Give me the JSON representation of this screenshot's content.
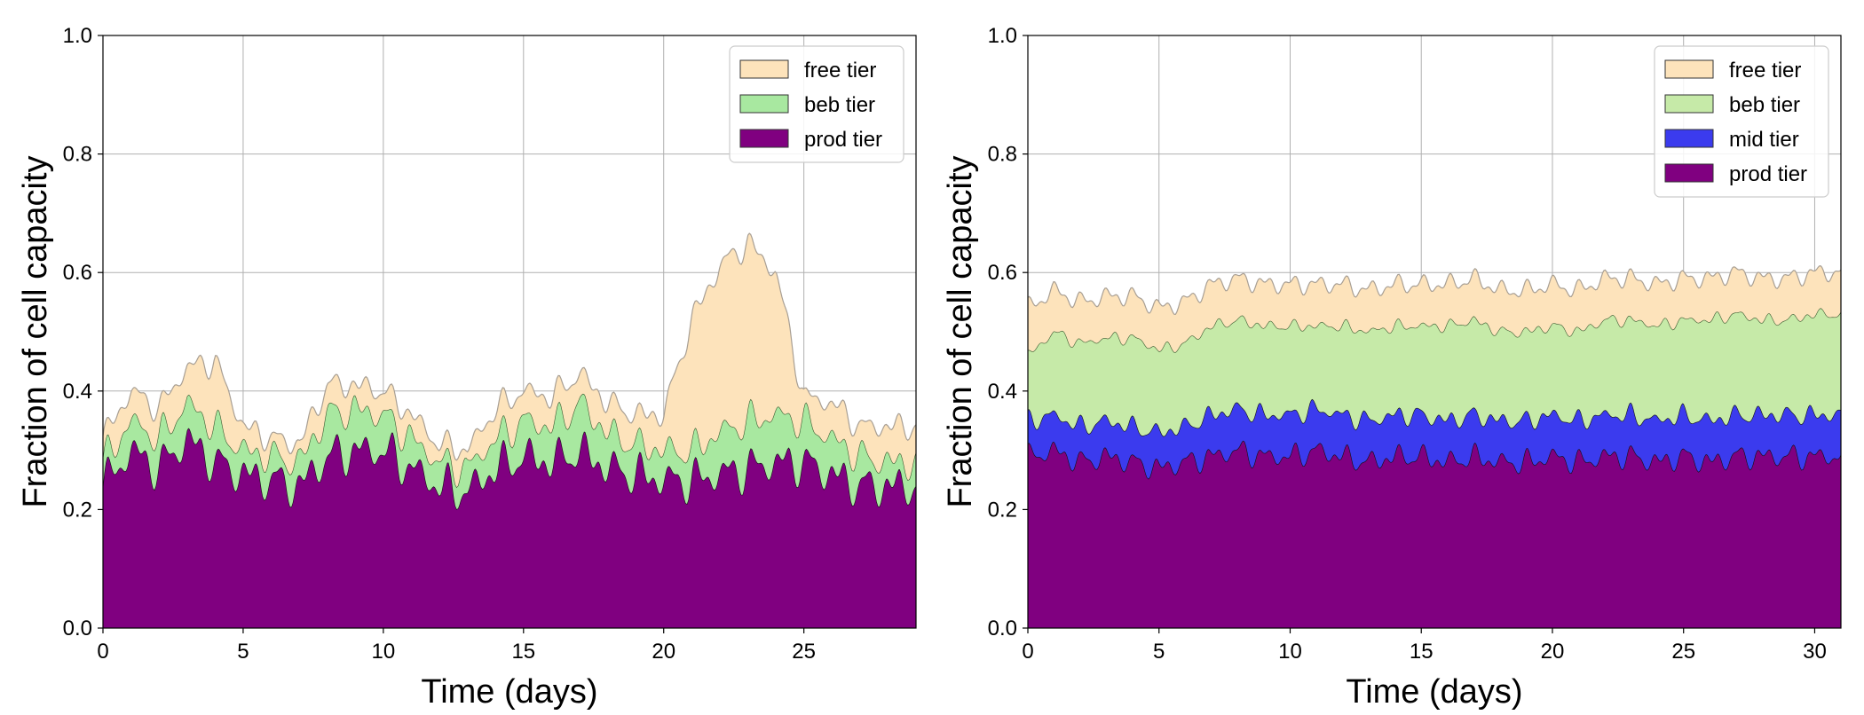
{
  "chart_data": [
    {
      "type": "area",
      "stacked": true,
      "xlabel": "Time (days)",
      "ylabel": "Fraction of cell capacity",
      "xlim": [
        0,
        29
      ],
      "ylim": [
        0,
        1.0
      ],
      "xticks": [
        "0",
        "5",
        "10",
        "15",
        "20",
        "25"
      ],
      "yticks": [
        "0.0",
        "0.2",
        "0.4",
        "0.6",
        "0.8",
        "1.0"
      ],
      "grid": true,
      "legend_position": "top-right",
      "legend": [
        "free tier",
        "beb tier",
        "prod tier"
      ],
      "x": [
        0,
        1,
        2,
        3,
        4,
        5,
        6,
        7,
        8,
        9,
        10,
        11,
        12,
        13,
        14,
        15,
        16,
        17,
        18,
        19,
        20,
        21,
        22,
        23,
        24,
        25,
        26,
        27,
        28,
        29
      ],
      "series": [
        {
          "name": "prod tier",
          "color": "#800080",
          "values": [
            0.24,
            0.3,
            0.27,
            0.32,
            0.28,
            0.26,
            0.25,
            0.24,
            0.29,
            0.3,
            0.3,
            0.27,
            0.24,
            0.23,
            0.27,
            0.29,
            0.28,
            0.3,
            0.27,
            0.26,
            0.25,
            0.25,
            0.26,
            0.27,
            0.28,
            0.28,
            0.26,
            0.24,
            0.24,
            0.24
          ]
        },
        {
          "name": "beb tier",
          "color": "#a8e8a0",
          "values": [
            0.04,
            0.05,
            0.05,
            0.06,
            0.06,
            0.04,
            0.04,
            0.04,
            0.07,
            0.07,
            0.06,
            0.05,
            0.04,
            0.04,
            0.05,
            0.06,
            0.06,
            0.08,
            0.06,
            0.05,
            0.05,
            0.05,
            0.07,
            0.08,
            0.08,
            0.07,
            0.06,
            0.05,
            0.04,
            0.04
          ]
        },
        {
          "name": "free tier",
          "color": "#fde3bb",
          "values": [
            0.04,
            0.05,
            0.05,
            0.06,
            0.11,
            0.04,
            0.03,
            0.03,
            0.05,
            0.04,
            0.04,
            0.04,
            0.03,
            0.03,
            0.05,
            0.05,
            0.05,
            0.05,
            0.05,
            0.05,
            0.06,
            0.22,
            0.28,
            0.3,
            0.24,
            0.04,
            0.06,
            0.05,
            0.06,
            0.06
          ]
        }
      ]
    },
    {
      "type": "area",
      "stacked": true,
      "xlabel": "Time (days)",
      "ylabel": "Fraction of cell capacity",
      "xlim": [
        0,
        31
      ],
      "ylim": [
        0,
        1.0
      ],
      "xticks": [
        "0",
        "5",
        "10",
        "15",
        "20",
        "25",
        "30"
      ],
      "yticks": [
        "0.0",
        "0.2",
        "0.4",
        "0.6",
        "0.8",
        "1.0"
      ],
      "grid": true,
      "legend_position": "top-right",
      "legend": [
        "free tier",
        "beb tier",
        "mid tier",
        "prod tier"
      ],
      "x": [
        0,
        1,
        2,
        3,
        4,
        5,
        6,
        7,
        8,
        9,
        10,
        11,
        12,
        13,
        14,
        15,
        16,
        17,
        18,
        19,
        20,
        21,
        22,
        23,
        24,
        25,
        26,
        27,
        28,
        29,
        30,
        31
      ],
      "series": [
        {
          "name": "prod tier",
          "color": "#800080",
          "values": [
            0.29,
            0.3,
            0.28,
            0.29,
            0.28,
            0.27,
            0.28,
            0.29,
            0.3,
            0.29,
            0.29,
            0.3,
            0.29,
            0.28,
            0.29,
            0.29,
            0.28,
            0.29,
            0.28,
            0.28,
            0.29,
            0.28,
            0.29,
            0.29,
            0.28,
            0.29,
            0.28,
            0.29,
            0.29,
            0.29,
            0.29,
            0.29
          ]
        },
        {
          "name": "mid tier",
          "color": "#3b3bee",
          "values": [
            0.06,
            0.06,
            0.06,
            0.06,
            0.06,
            0.06,
            0.06,
            0.07,
            0.07,
            0.07,
            0.07,
            0.07,
            0.07,
            0.07,
            0.07,
            0.07,
            0.07,
            0.07,
            0.07,
            0.07,
            0.07,
            0.07,
            0.07,
            0.07,
            0.07,
            0.07,
            0.07,
            0.07,
            0.07,
            0.07,
            0.07,
            0.07
          ]
        },
        {
          "name": "beb tier",
          "color": "#c6eaa8",
          "values": [
            0.11,
            0.14,
            0.14,
            0.14,
            0.15,
            0.14,
            0.14,
            0.15,
            0.15,
            0.15,
            0.15,
            0.14,
            0.15,
            0.15,
            0.15,
            0.15,
            0.16,
            0.16,
            0.15,
            0.15,
            0.15,
            0.15,
            0.16,
            0.16,
            0.16,
            0.16,
            0.17,
            0.17,
            0.16,
            0.16,
            0.17,
            0.17
          ]
        },
        {
          "name": "free tier",
          "color": "#fde3bb",
          "values": [
            0.08,
            0.07,
            0.07,
            0.07,
            0.07,
            0.07,
            0.07,
            0.07,
            0.07,
            0.07,
            0.07,
            0.07,
            0.07,
            0.07,
            0.07,
            0.07,
            0.07,
            0.07,
            0.07,
            0.07,
            0.07,
            0.07,
            0.07,
            0.07,
            0.07,
            0.07,
            0.07,
            0.07,
            0.07,
            0.07,
            0.07,
            0.07
          ]
        }
      ]
    }
  ]
}
